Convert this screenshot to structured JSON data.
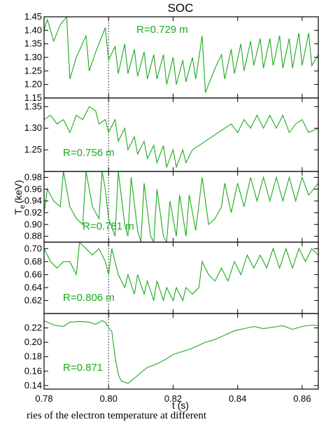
{
  "chart_data": {
    "type": "line",
    "title": "SOC",
    "xlabel": "t (s)",
    "ylabel": "T",
    "ylabel_subscript": "e",
    "ylabel_unit": "(keV)",
    "xlim": [
      0.78,
      0.865
    ],
    "x_ticks": [
      "0.78",
      "0.80",
      "0.82",
      "0.84",
      "0.86"
    ],
    "x_tick_values": [
      0.78,
      0.8,
      0.82,
      0.84,
      0.86
    ],
    "vertical_marker_t": 0.8,
    "line_color": "#1aaa1a",
    "panels": [
      {
        "label": "R=0.729 m",
        "ylim": [
          1.15,
          1.45
        ],
        "y_ticks": [
          "1.15",
          "1.20",
          "1.25",
          "1.30",
          "1.35",
          "1.40",
          "1.45"
        ],
        "y_tick_values": [
          1.15,
          1.2,
          1.25,
          1.3,
          1.35,
          1.4,
          1.45
        ],
        "points": [
          [
            0.78,
            1.4
          ],
          [
            0.781,
            1.44
          ],
          [
            0.783,
            1.36
          ],
          [
            0.785,
            1.42
          ],
          [
            0.787,
            1.45
          ],
          [
            0.788,
            1.22
          ],
          [
            0.79,
            1.3
          ],
          [
            0.793,
            1.38
          ],
          [
            0.794,
            1.25
          ],
          [
            0.796,
            1.32
          ],
          [
            0.798,
            1.38
          ],
          [
            0.799,
            1.41
          ],
          [
            0.8,
            1.29
          ],
          [
            0.802,
            1.34
          ],
          [
            0.803,
            1.24
          ],
          [
            0.805,
            1.35
          ],
          [
            0.806,
            1.24
          ],
          [
            0.808,
            1.33
          ],
          [
            0.809,
            1.23
          ],
          [
            0.811,
            1.32
          ],
          [
            0.812,
            1.22
          ],
          [
            0.814,
            1.31
          ],
          [
            0.815,
            1.22
          ],
          [
            0.817,
            1.31
          ],
          [
            0.818,
            1.2
          ],
          [
            0.82,
            1.3
          ],
          [
            0.821,
            1.2
          ],
          [
            0.823,
            1.29
          ],
          [
            0.824,
            1.21
          ],
          [
            0.826,
            1.3
          ],
          [
            0.827,
            1.22
          ],
          [
            0.829,
            1.38
          ],
          [
            0.83,
            1.17
          ],
          [
            0.833,
            1.26
          ],
          [
            0.835,
            1.31
          ],
          [
            0.836,
            1.22
          ],
          [
            0.838,
            1.33
          ],
          [
            0.839,
            1.24
          ],
          [
            0.841,
            1.35
          ],
          [
            0.842,
            1.25
          ],
          [
            0.844,
            1.36
          ],
          [
            0.845,
            1.27
          ],
          [
            0.847,
            1.37
          ],
          [
            0.848,
            1.26
          ],
          [
            0.85,
            1.37
          ],
          [
            0.851,
            1.27
          ],
          [
            0.853,
            1.38
          ],
          [
            0.854,
            1.26
          ],
          [
            0.856,
            1.37
          ],
          [
            0.857,
            1.26
          ],
          [
            0.859,
            1.39
          ],
          [
            0.86,
            1.27
          ],
          [
            0.862,
            1.39
          ],
          [
            0.863,
            1.27
          ],
          [
            0.865,
            1.31
          ]
        ]
      },
      {
        "label": "R=0.756 m",
        "ylim": [
          1.2,
          1.37
        ],
        "y_ticks": [
          "1.25",
          "1.30",
          "1.35"
        ],
        "y_tick_values": [
          1.25,
          1.3,
          1.35
        ],
        "points": [
          [
            0.78,
            1.32
          ],
          [
            0.782,
            1.33
          ],
          [
            0.784,
            1.31
          ],
          [
            0.786,
            1.32
          ],
          [
            0.788,
            1.29
          ],
          [
            0.79,
            1.33
          ],
          [
            0.792,
            1.32
          ],
          [
            0.794,
            1.35
          ],
          [
            0.796,
            1.34
          ],
          [
            0.797,
            1.31
          ],
          [
            0.799,
            1.32
          ],
          [
            0.8,
            1.29
          ],
          [
            0.802,
            1.32
          ],
          [
            0.803,
            1.27
          ],
          [
            0.805,
            1.3
          ],
          [
            0.806,
            1.25
          ],
          [
            0.808,
            1.28
          ],
          [
            0.809,
            1.24
          ],
          [
            0.811,
            1.27
          ],
          [
            0.812,
            1.23
          ],
          [
            0.814,
            1.26
          ],
          [
            0.815,
            1.22
          ],
          [
            0.817,
            1.26
          ],
          [
            0.818,
            1.21
          ],
          [
            0.82,
            1.25
          ],
          [
            0.821,
            1.21
          ],
          [
            0.823,
            1.25
          ],
          [
            0.824,
            1.22
          ],
          [
            0.826,
            1.25
          ],
          [
            0.828,
            1.26
          ],
          [
            0.83,
            1.27
          ],
          [
            0.832,
            1.28
          ],
          [
            0.834,
            1.29
          ],
          [
            0.836,
            1.3
          ],
          [
            0.838,
            1.31
          ],
          [
            0.84,
            1.29
          ],
          [
            0.842,
            1.32
          ],
          [
            0.844,
            1.3
          ],
          [
            0.846,
            1.33
          ],
          [
            0.848,
            1.3
          ],
          [
            0.85,
            1.33
          ],
          [
            0.852,
            1.3
          ],
          [
            0.854,
            1.33
          ],
          [
            0.856,
            1.29
          ],
          [
            0.858,
            1.31
          ],
          [
            0.86,
            1.32
          ],
          [
            0.862,
            1.29
          ],
          [
            0.865,
            1.3
          ]
        ]
      },
      {
        "label": "R=0.781 m",
        "ylim": [
          0.87,
          0.99
        ],
        "y_ticks": [
          "0.88",
          "0.90",
          "0.92",
          "0.94",
          "0.96",
          "0.98"
        ],
        "y_tick_values": [
          0.88,
          0.9,
          0.92,
          0.94,
          0.96,
          0.98
        ],
        "points": [
          [
            0.78,
            0.92
          ],
          [
            0.781,
            0.96
          ],
          [
            0.783,
            0.94
          ],
          [
            0.785,
            0.93
          ],
          [
            0.786,
            0.99
          ],
          [
            0.788,
            0.93
          ],
          [
            0.79,
            0.91
          ],
          [
            0.792,
            0.9
          ],
          [
            0.793,
            0.99
          ],
          [
            0.795,
            0.93
          ],
          [
            0.797,
            0.91
          ],
          [
            0.798,
            0.99
          ],
          [
            0.799,
            0.96
          ],
          [
            0.8,
            0.91
          ],
          [
            0.802,
            0.88
          ],
          [
            0.803,
            0.99
          ],
          [
            0.805,
            0.9
          ],
          [
            0.806,
            0.88
          ],
          [
            0.807,
            0.98
          ],
          [
            0.809,
            0.89
          ],
          [
            0.81,
            0.87
          ],
          [
            0.811,
            0.97
          ],
          [
            0.813,
            0.88
          ],
          [
            0.814,
            0.87
          ],
          [
            0.815,
            0.96
          ],
          [
            0.817,
            0.88
          ],
          [
            0.818,
            0.87
          ],
          [
            0.819,
            0.94
          ],
          [
            0.821,
            0.88
          ],
          [
            0.822,
            0.95
          ],
          [
            0.824,
            0.88
          ],
          [
            0.825,
            0.95
          ],
          [
            0.827,
            0.89
          ],
          [
            0.829,
            0.98
          ],
          [
            0.831,
            0.9
          ],
          [
            0.833,
            0.91
          ],
          [
            0.835,
            0.93
          ],
          [
            0.836,
            0.97
          ],
          [
            0.838,
            0.92
          ],
          [
            0.84,
            0.97
          ],
          [
            0.842,
            0.93
          ],
          [
            0.844,
            0.98
          ],
          [
            0.846,
            0.94
          ],
          [
            0.848,
            0.98
          ],
          [
            0.85,
            0.94
          ],
          [
            0.852,
            0.98
          ],
          [
            0.854,
            0.94
          ],
          [
            0.856,
            0.98
          ],
          [
            0.858,
            0.94
          ],
          [
            0.86,
            0.98
          ],
          [
            0.862,
            0.95
          ],
          [
            0.865,
            0.97
          ]
        ]
      },
      {
        "label": "R=0.806 m",
        "ylim": [
          0.6,
          0.71
        ],
        "y_ticks": [
          "0.62",
          "0.64",
          "0.66",
          "0.68",
          "0.70"
        ],
        "y_tick_values": [
          0.62,
          0.64,
          0.66,
          0.68,
          0.7
        ],
        "points": [
          [
            0.78,
            0.7
          ],
          [
            0.782,
            0.68
          ],
          [
            0.784,
            0.67
          ],
          [
            0.786,
            0.68
          ],
          [
            0.788,
            0.68
          ],
          [
            0.79,
            0.66
          ],
          [
            0.791,
            0.71
          ],
          [
            0.793,
            0.7
          ],
          [
            0.795,
            0.69
          ],
          [
            0.797,
            0.7
          ],
          [
            0.799,
            0.68
          ],
          [
            0.8,
            0.66
          ],
          [
            0.801,
            0.7
          ],
          [
            0.803,
            0.66
          ],
          [
            0.805,
            0.64
          ],
          [
            0.806,
            0.66
          ],
          [
            0.808,
            0.63
          ],
          [
            0.809,
            0.66
          ],
          [
            0.811,
            0.63
          ],
          [
            0.812,
            0.65
          ],
          [
            0.814,
            0.62
          ],
          [
            0.815,
            0.65
          ],
          [
            0.817,
            0.62
          ],
          [
            0.818,
            0.64
          ],
          [
            0.82,
            0.62
          ],
          [
            0.821,
            0.64
          ],
          [
            0.823,
            0.62
          ],
          [
            0.824,
            0.64
          ],
          [
            0.826,
            0.63
          ],
          [
            0.828,
            0.64
          ],
          [
            0.829,
            0.68
          ],
          [
            0.831,
            0.66
          ],
          [
            0.833,
            0.65
          ],
          [
            0.835,
            0.67
          ],
          [
            0.837,
            0.65
          ],
          [
            0.839,
            0.68
          ],
          [
            0.841,
            0.66
          ],
          [
            0.843,
            0.69
          ],
          [
            0.845,
            0.67
          ],
          [
            0.847,
            0.69
          ],
          [
            0.849,
            0.67
          ],
          [
            0.851,
            0.7
          ],
          [
            0.853,
            0.67
          ],
          [
            0.855,
            0.7
          ],
          [
            0.857,
            0.67
          ],
          [
            0.859,
            0.7
          ],
          [
            0.861,
            0.68
          ],
          [
            0.863,
            0.7
          ],
          [
            0.865,
            0.69
          ]
        ]
      },
      {
        "label": "R=0.871",
        "ylim": [
          0.135,
          0.24
        ],
        "y_ticks": [
          "0.14",
          "0.16",
          "0.18",
          "0.20",
          "0.22"
        ],
        "y_tick_values": [
          0.14,
          0.16,
          0.18,
          0.2,
          0.22
        ],
        "points": [
          [
            0.78,
            0.23
          ],
          [
            0.783,
            0.224
          ],
          [
            0.786,
            0.222
          ],
          [
            0.788,
            0.228
          ],
          [
            0.791,
            0.229
          ],
          [
            0.794,
            0.228
          ],
          [
            0.796,
            0.225
          ],
          [
            0.798,
            0.23
          ],
          [
            0.799,
            0.228
          ],
          [
            0.8,
            0.22
          ],
          [
            0.801,
            0.215
          ],
          [
            0.802,
            0.18
          ],
          [
            0.803,
            0.155
          ],
          [
            0.804,
            0.146
          ],
          [
            0.806,
            0.143
          ],
          [
            0.808,
            0.15
          ],
          [
            0.81,
            0.158
          ],
          [
            0.812,
            0.165
          ],
          [
            0.815,
            0.17
          ],
          [
            0.818,
            0.177
          ],
          [
            0.82,
            0.183
          ],
          [
            0.822,
            0.186
          ],
          [
            0.825,
            0.19
          ],
          [
            0.828,
            0.196
          ],
          [
            0.83,
            0.2
          ],
          [
            0.833,
            0.204
          ],
          [
            0.836,
            0.21
          ],
          [
            0.839,
            0.216
          ],
          [
            0.842,
            0.219
          ],
          [
            0.845,
            0.222
          ],
          [
            0.848,
            0.219
          ],
          [
            0.851,
            0.221
          ],
          [
            0.854,
            0.223
          ],
          [
            0.857,
            0.218
          ],
          [
            0.86,
            0.222
          ],
          [
            0.863,
            0.224
          ],
          [
            0.865,
            0.223
          ]
        ]
      }
    ],
    "caption_fragment": "ries of the electron temperature at different"
  }
}
